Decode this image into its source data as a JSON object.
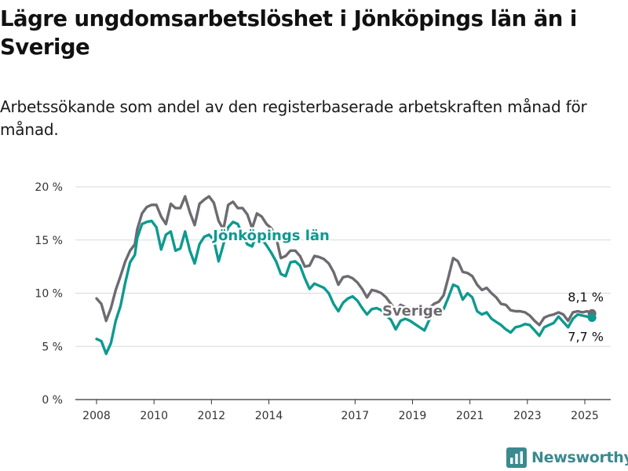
{
  "header": {
    "title": "Lägre ungdomsarbetslöshet i Jönköpings län än i Sverige",
    "subtitle": "Arbetssökande som andel av den registerbaserade arbetskraften månad för månad."
  },
  "brand": {
    "name": "Newsworthy",
    "icon": "bar-chart-logo-icon",
    "color": "#3a8a8f"
  },
  "chart_data": {
    "type": "line",
    "title": "Lägre ungdomsarbetslöshet i Jönköpings län än i Sverige",
    "subtitle": "Arbetssökande som andel av den registerbaserade arbetskraften månad för månad.",
    "xlabel": "",
    "ylabel": "",
    "x_range": [
      "2008-01",
      "2025-12"
    ],
    "ylim": [
      0,
      20
    ],
    "y_ticks": [
      0,
      5,
      10,
      15,
      20
    ],
    "y_tick_labels": [
      "0 %",
      "5 %",
      "10 %",
      "15 %",
      "20 %"
    ],
    "x_ticks": [
      {
        "year": 2008,
        "label": "2008"
      },
      {
        "year": 2010,
        "label": "2010"
      },
      {
        "year": 2012,
        "label": "2012"
      },
      {
        "year": 2014,
        "label": "2014"
      },
      {
        "year": 2017,
        "label": "2017"
      },
      {
        "year": 2019,
        "label": "2019"
      },
      {
        "year": 2021,
        "label": "2021"
      },
      {
        "year": 2023,
        "label": "2023"
      },
      {
        "year": 2025,
        "label": "2025"
      }
    ],
    "grid": true,
    "series": [
      {
        "name": "Sverige",
        "color": "#6d6a70",
        "points": [
          [
            "2008-01",
            9.5
          ],
          [
            "2008-03",
            9.0
          ],
          [
            "2008-05",
            7.4
          ],
          [
            "2008-07",
            8.6
          ],
          [
            "2008-09",
            10.3
          ],
          [
            "2008-11",
            11.6
          ],
          [
            "2009-01",
            13.0
          ],
          [
            "2009-03",
            14.0
          ],
          [
            "2009-05",
            14.6
          ],
          [
            "2009-06",
            16.0
          ],
          [
            "2009-08",
            17.5
          ],
          [
            "2009-10",
            18.1
          ],
          [
            "2009-12",
            18.3
          ],
          [
            "2010-02",
            18.3
          ],
          [
            "2010-04",
            17.2
          ],
          [
            "2010-06",
            16.5
          ],
          [
            "2010-08",
            18.4
          ],
          [
            "2010-10",
            18.0
          ],
          [
            "2010-12",
            18.0
          ],
          [
            "2011-02",
            19.1
          ],
          [
            "2011-04",
            17.6
          ],
          [
            "2011-06",
            16.4
          ],
          [
            "2011-08",
            18.4
          ],
          [
            "2011-10",
            18.8
          ],
          [
            "2011-12",
            19.1
          ],
          [
            "2012-02",
            18.5
          ],
          [
            "2012-04",
            16.8
          ],
          [
            "2012-06",
            16.0
          ],
          [
            "2012-08",
            18.3
          ],
          [
            "2012-10",
            18.6
          ],
          [
            "2012-12",
            18.0
          ],
          [
            "2013-02",
            18.0
          ],
          [
            "2013-04",
            17.4
          ],
          [
            "2013-06",
            16.1
          ],
          [
            "2013-08",
            17.5
          ],
          [
            "2013-10",
            17.2
          ],
          [
            "2013-12",
            16.5
          ],
          [
            "2014-02",
            16.1
          ],
          [
            "2014-04",
            15.3
          ],
          [
            "2014-06",
            13.3
          ],
          [
            "2014-08",
            13.5
          ],
          [
            "2014-10",
            14.0
          ],
          [
            "2014-12",
            14.0
          ],
          [
            "2015-02",
            13.5
          ],
          [
            "2015-04",
            12.5
          ],
          [
            "2015-06",
            12.6
          ],
          [
            "2015-08",
            13.5
          ],
          [
            "2015-10",
            13.4
          ],
          [
            "2015-12",
            13.2
          ],
          [
            "2016-02",
            12.8
          ],
          [
            "2016-04",
            12.0
          ],
          [
            "2016-06",
            10.8
          ],
          [
            "2016-08",
            11.5
          ],
          [
            "2016-10",
            11.6
          ],
          [
            "2016-12",
            11.4
          ],
          [
            "2017-02",
            11.0
          ],
          [
            "2017-04",
            10.4
          ],
          [
            "2017-06",
            9.6
          ],
          [
            "2017-08",
            10.3
          ],
          [
            "2017-10",
            10.2
          ],
          [
            "2017-12",
            10.0
          ],
          [
            "2018-02",
            9.6
          ],
          [
            "2018-04",
            9.0
          ],
          [
            "2018-06",
            8.4
          ],
          [
            "2018-08",
            8.9
          ],
          [
            "2018-10",
            8.7
          ],
          [
            "2018-12",
            8.6
          ],
          [
            "2019-02",
            8.5
          ],
          [
            "2019-04",
            8.2
          ],
          [
            "2019-06",
            8.0
          ],
          [
            "2019-08",
            8.6
          ],
          [
            "2019-10",
            9.0
          ],
          [
            "2019-12",
            9.2
          ],
          [
            "2020-02",
            9.8
          ],
          [
            "2020-04",
            11.5
          ],
          [
            "2020-06",
            13.3
          ],
          [
            "2020-08",
            13.0
          ],
          [
            "2020-10",
            12.0
          ],
          [
            "2020-12",
            11.9
          ],
          [
            "2021-02",
            11.6
          ],
          [
            "2021-04",
            10.8
          ],
          [
            "2021-06",
            10.3
          ],
          [
            "2021-08",
            10.5
          ],
          [
            "2021-10",
            10.0
          ],
          [
            "2021-12",
            9.6
          ],
          [
            "2022-02",
            9.0
          ],
          [
            "2022-04",
            8.9
          ],
          [
            "2022-06",
            8.4
          ],
          [
            "2022-08",
            8.3
          ],
          [
            "2022-10",
            8.3
          ],
          [
            "2022-12",
            8.2
          ],
          [
            "2023-02",
            7.9
          ],
          [
            "2023-04",
            7.4
          ],
          [
            "2023-06",
            7.0
          ],
          [
            "2023-08",
            7.7
          ],
          [
            "2023-10",
            7.9
          ],
          [
            "2023-12",
            8.0
          ],
          [
            "2024-02",
            8.2
          ],
          [
            "2024-04",
            8.0
          ],
          [
            "2024-06",
            7.4
          ],
          [
            "2024-08",
            8.2
          ],
          [
            "2024-10",
            8.3
          ],
          [
            "2024-12",
            8.2
          ],
          [
            "2025-02",
            8.3
          ],
          [
            "2025-04",
            8.1
          ]
        ],
        "end_label": "8,1 %"
      },
      {
        "name": "Jönköpings län",
        "color": "#0d9a8f",
        "points": [
          [
            "2008-01",
            5.7
          ],
          [
            "2008-03",
            5.5
          ],
          [
            "2008-05",
            4.3
          ],
          [
            "2008-07",
            5.3
          ],
          [
            "2008-09",
            7.4
          ],
          [
            "2008-11",
            8.8
          ],
          [
            "2009-01",
            11.0
          ],
          [
            "2009-03",
            12.9
          ],
          [
            "2009-05",
            13.6
          ],
          [
            "2009-06",
            15.2
          ],
          [
            "2009-08",
            16.5
          ],
          [
            "2009-10",
            16.7
          ],
          [
            "2009-12",
            16.8
          ],
          [
            "2010-02",
            16.2
          ],
          [
            "2010-04",
            14.1
          ],
          [
            "2010-06",
            15.5
          ],
          [
            "2010-08",
            15.8
          ],
          [
            "2010-10",
            14.0
          ],
          [
            "2010-12",
            14.2
          ],
          [
            "2011-02",
            15.8
          ],
          [
            "2011-04",
            14.0
          ],
          [
            "2011-06",
            12.8
          ],
          [
            "2011-08",
            14.6
          ],
          [
            "2011-10",
            15.3
          ],
          [
            "2011-12",
            15.5
          ],
          [
            "2012-02",
            15.0
          ],
          [
            "2012-04",
            13.0
          ],
          [
            "2012-06",
            14.6
          ],
          [
            "2012-08",
            16.2
          ],
          [
            "2012-10",
            16.7
          ],
          [
            "2012-12",
            16.5
          ],
          [
            "2013-02",
            15.5
          ],
          [
            "2013-04",
            14.6
          ],
          [
            "2013-06",
            14.4
          ],
          [
            "2013-08",
            15.6
          ],
          [
            "2013-10",
            15.1
          ],
          [
            "2013-12",
            14.5
          ],
          [
            "2014-02",
            13.8
          ],
          [
            "2014-04",
            13.0
          ],
          [
            "2014-06",
            11.8
          ],
          [
            "2014-08",
            11.6
          ],
          [
            "2014-10",
            12.9
          ],
          [
            "2014-12",
            13.0
          ],
          [
            "2015-02",
            12.6
          ],
          [
            "2015-04",
            11.4
          ],
          [
            "2015-06",
            10.4
          ],
          [
            "2015-08",
            10.9
          ],
          [
            "2015-10",
            10.7
          ],
          [
            "2015-12",
            10.5
          ],
          [
            "2016-02",
            10.0
          ],
          [
            "2016-04",
            9.0
          ],
          [
            "2016-06",
            8.3
          ],
          [
            "2016-08",
            9.1
          ],
          [
            "2016-10",
            9.5
          ],
          [
            "2016-12",
            9.7
          ],
          [
            "2017-02",
            9.3
          ],
          [
            "2017-04",
            8.6
          ],
          [
            "2017-06",
            8.0
          ],
          [
            "2017-08",
            8.5
          ],
          [
            "2017-10",
            8.6
          ],
          [
            "2017-12",
            8.4
          ],
          [
            "2018-02",
            7.9
          ],
          [
            "2018-04",
            7.5
          ],
          [
            "2018-06",
            6.6
          ],
          [
            "2018-08",
            7.4
          ],
          [
            "2018-10",
            7.6
          ],
          [
            "2018-12",
            7.4
          ],
          [
            "2019-02",
            7.1
          ],
          [
            "2019-04",
            6.8
          ],
          [
            "2019-06",
            6.5
          ],
          [
            "2019-08",
            7.5
          ],
          [
            "2019-10",
            8.0
          ],
          [
            "2019-12",
            8.2
          ],
          [
            "2020-02",
            8.5
          ],
          [
            "2020-04",
            9.6
          ],
          [
            "2020-06",
            10.8
          ],
          [
            "2020-08",
            10.6
          ],
          [
            "2020-10",
            9.4
          ],
          [
            "2020-12",
            10.0
          ],
          [
            "2021-02",
            9.6
          ],
          [
            "2021-04",
            8.3
          ],
          [
            "2021-06",
            8.0
          ],
          [
            "2021-08",
            8.2
          ],
          [
            "2021-10",
            7.6
          ],
          [
            "2021-12",
            7.3
          ],
          [
            "2022-02",
            7.0
          ],
          [
            "2022-04",
            6.6
          ],
          [
            "2022-06",
            6.3
          ],
          [
            "2022-08",
            6.8
          ],
          [
            "2022-10",
            6.9
          ],
          [
            "2022-12",
            7.1
          ],
          [
            "2023-02",
            7.0
          ],
          [
            "2023-04",
            6.5
          ],
          [
            "2023-06",
            6.0
          ],
          [
            "2023-08",
            6.8
          ],
          [
            "2023-10",
            7.0
          ],
          [
            "2023-12",
            7.2
          ],
          [
            "2024-02",
            7.8
          ],
          [
            "2024-04",
            7.3
          ],
          [
            "2024-06",
            6.8
          ],
          [
            "2024-08",
            7.6
          ],
          [
            "2024-10",
            8.0
          ],
          [
            "2024-12",
            7.9
          ],
          [
            "2025-02",
            7.8
          ],
          [
            "2025-04",
            7.7
          ]
        ],
        "end_label": "7,7 %"
      }
    ],
    "annotations": [
      {
        "text": "Jönköpings län",
        "series": "Jönköpings län",
        "anchor": [
          "2014-02",
          15.0
        ]
      },
      {
        "text": "Sverige",
        "series": "Sverige",
        "anchor": [
          "2019-01",
          7.9
        ]
      }
    ]
  }
}
